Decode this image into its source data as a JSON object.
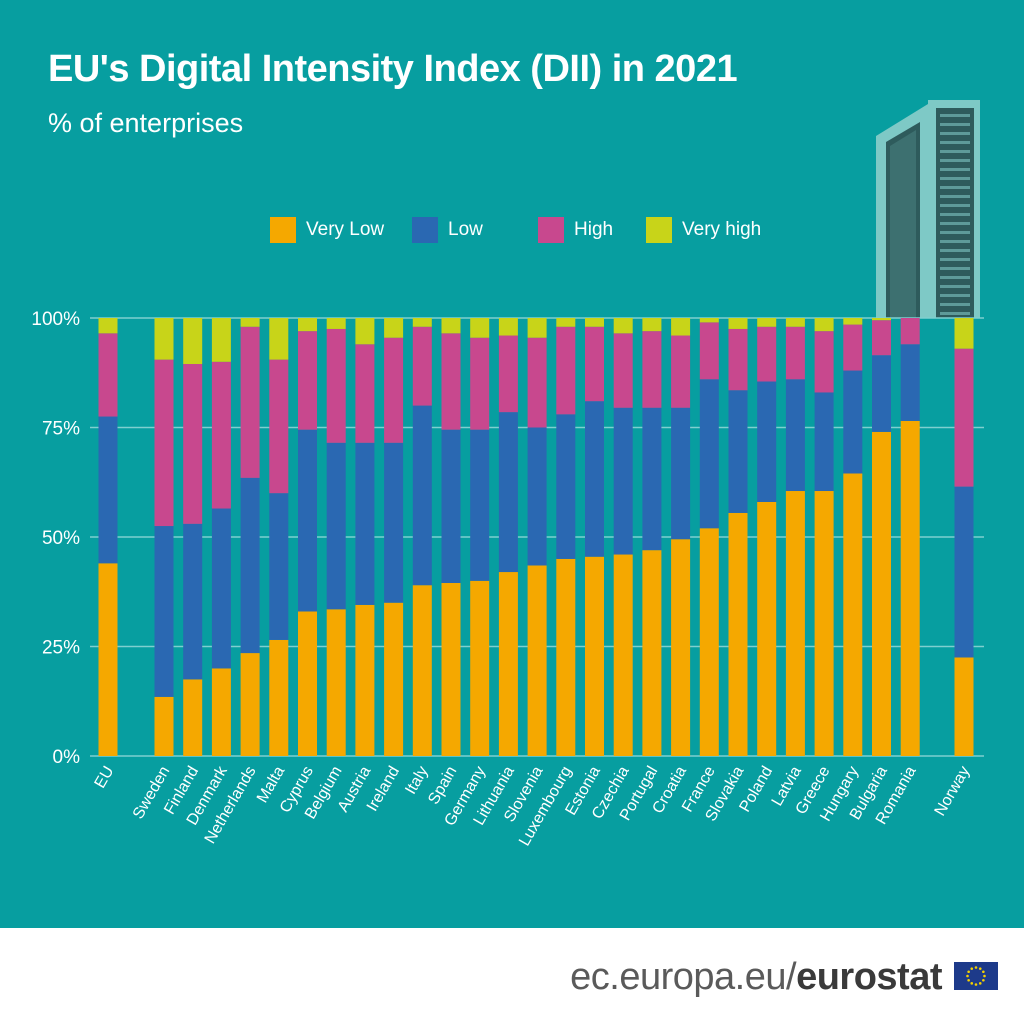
{
  "header": {
    "title": "EU's Digital Intensity Index (DII) in 2021",
    "subtitle": "% of enterprises"
  },
  "legend": [
    {
      "label": "Very Low",
      "color": "#f5a800"
    },
    {
      "label": "Low",
      "color": "#2a68b2"
    },
    {
      "label": "High",
      "color": "#c8488e"
    },
    {
      "label": "Very high",
      "color": "#c8d419"
    }
  ],
  "footer": {
    "url_prefix": "ec.europa.eu/",
    "url_brand": "eurostat"
  },
  "colors": {
    "background": "#079ea0",
    "gridline": "#7fcfcf",
    "very_low": "#f5a800",
    "low": "#2a68b2",
    "high": "#c8488e",
    "very_high": "#c8d419"
  },
  "chart_data": {
    "type": "bar",
    "stacked": true,
    "ylim": [
      0,
      100
    ],
    "yticks": [
      "0%",
      "25%",
      "50%",
      "75%",
      "100%"
    ],
    "grid": true,
    "legend_position": "top-center",
    "categories": [
      "EU",
      "Sweden",
      "Finland",
      "Denmark",
      "Netherlands",
      "Malta",
      "Cyprus",
      "Belgium",
      "Austria",
      "Ireland",
      "Italy",
      "Spain",
      "Germany",
      "Lithuania",
      "Slovenia",
      "Luxembourg",
      "Estonia",
      "Czechia",
      "Portugal",
      "Croatia",
      "France",
      "Slovakia",
      "Poland",
      "Latvia",
      "Greece",
      "Hungary",
      "Bulgaria",
      "Romania",
      "Norway"
    ],
    "series": [
      {
        "name": "Very Low",
        "values": [
          44,
          13.5,
          17.5,
          20,
          23.5,
          26.5,
          33,
          33.5,
          34.5,
          35,
          39,
          39.5,
          40,
          42,
          43.5,
          45,
          45.5,
          46,
          47,
          49.5,
          52,
          55.5,
          58,
          60.5,
          60.5,
          64.5,
          74,
          76.5,
          22.5
        ]
      },
      {
        "name": "Low",
        "values": [
          33.5,
          39,
          35.5,
          36.5,
          40,
          33.5,
          41.5,
          38,
          37,
          36.5,
          41,
          35,
          34.5,
          36.5,
          31.5,
          33,
          35.5,
          33.5,
          32.5,
          30,
          34,
          28,
          27.5,
          25.5,
          22.5,
          23.5,
          17.5,
          17.5,
          39
        ]
      },
      {
        "name": "High",
        "values": [
          19,
          38,
          36.5,
          33.5,
          34.5,
          30.5,
          22.5,
          26,
          22.5,
          24,
          18,
          22,
          21,
          17.5,
          20.5,
          20,
          17,
          17,
          17.5,
          16.5,
          13,
          14,
          12.5,
          12,
          14,
          10.5,
          8,
          6,
          31.5
        ]
      },
      {
        "name": "Very high",
        "values": [
          3.5,
          9.5,
          10.5,
          10,
          2,
          9.5,
          3,
          2.5,
          6,
          4.5,
          2,
          3.5,
          4.5,
          4,
          4.5,
          2,
          2,
          3.5,
          3,
          4,
          1,
          2.5,
          2,
          2,
          3,
          1.5,
          0.5,
          0,
          7
        ]
      }
    ]
  }
}
